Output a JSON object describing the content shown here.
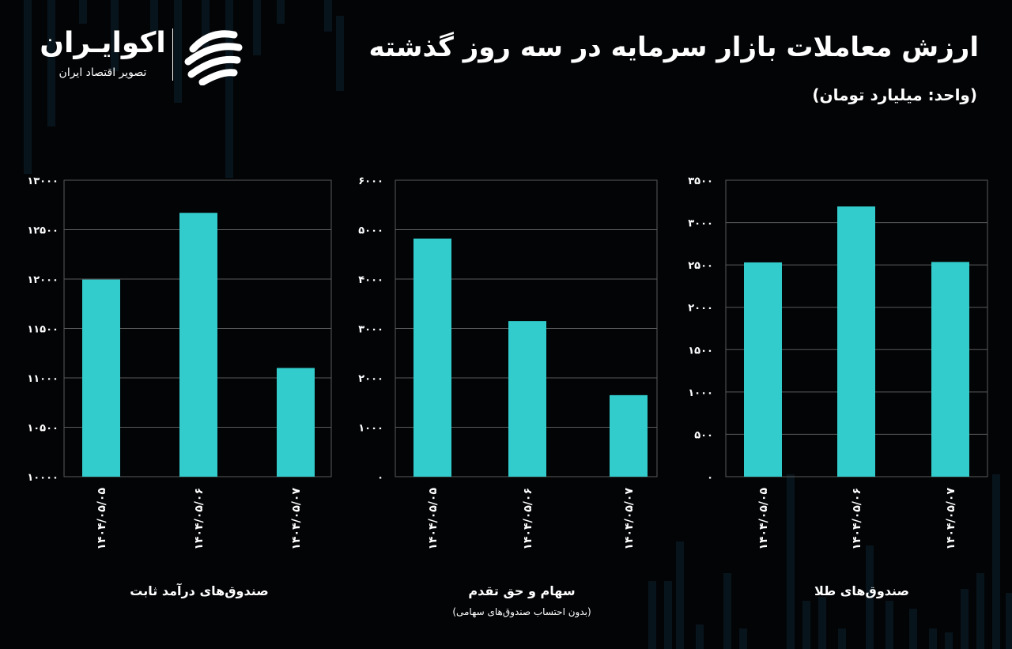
{
  "header": {
    "title": "ارزش معاملات بازار سرمایه در سه روز گذشته",
    "unit": "(واحد: میلیارد تومان)"
  },
  "logo": {
    "name": "اکوایـران",
    "subtitle": "تصویر اقتصاد ایران",
    "icon": "ekoiran-swoosh-logo-icon"
  },
  "colors": {
    "background": "#030406",
    "bar": "#33cccc",
    "grid": "#5a5a5a",
    "text": "#ffffff",
    "decor": "#0d2230"
  },
  "chart_data": [
    {
      "type": "bar",
      "title": "صندوق‌های درآمد ثابت",
      "subtitle": "",
      "categories": [
        "۱۴۰۴/۰۵/۰۵",
        "۱۴۰۴/۰۵/۰۶",
        "۱۴۰۴/۰۵/۰۷"
      ],
      "values": [
        11995,
        12670,
        11100
      ],
      "ylim": [
        10000,
        13000
      ],
      "yticks": [
        10000,
        10500,
        11000,
        11500,
        12000,
        12500,
        13000
      ],
      "ytick_labels": [
        "۱۰۰۰۰",
        "۱۰۵۰۰",
        "۱۱۰۰۰",
        "۱۱۵۰۰",
        "۱۲۰۰۰",
        "۱۲۵۰۰",
        "۱۳۰۰۰"
      ],
      "grid": true
    },
    {
      "type": "bar",
      "title": "سهام و حق تقدم",
      "subtitle": "(بدون احتساب صندوق‌های سهامی)",
      "categories": [
        "۱۴۰۴/۰۵/۰۵",
        "۱۴۰۴/۰۵/۰۶",
        "۱۴۰۴/۰۵/۰۷"
      ],
      "values": [
        4820,
        3150,
        1650
      ],
      "ylim": [
        0,
        6000
      ],
      "yticks": [
        0,
        1000,
        2000,
        3000,
        4000,
        5000,
        6000
      ],
      "ytick_labels": [
        "۰",
        "۱۰۰۰",
        "۲۰۰۰",
        "۳۰۰۰",
        "۴۰۰۰",
        "۵۰۰۰",
        "۶۰۰۰"
      ],
      "grid": true
    },
    {
      "type": "bar",
      "title": "صندوق‌های طلا",
      "subtitle": "",
      "categories": [
        "۱۴۰۴/۰۵/۰۵",
        "۱۴۰۴/۰۵/۰۶",
        "۱۴۰۴/۰۵/۰۷"
      ],
      "values": [
        2530,
        3190,
        2535
      ],
      "ylim": [
        0,
        3500
      ],
      "yticks": [
        0,
        500,
        1000,
        1500,
        2000,
        2500,
        3000,
        3500
      ],
      "ytick_labels": [
        "۰",
        "۵۰۰",
        "۱۰۰۰",
        "۱۵۰۰",
        "۲۰۰۰",
        "۲۵۰۰",
        "۳۰۰۰",
        "۳۵۰۰"
      ],
      "grid": true
    }
  ]
}
